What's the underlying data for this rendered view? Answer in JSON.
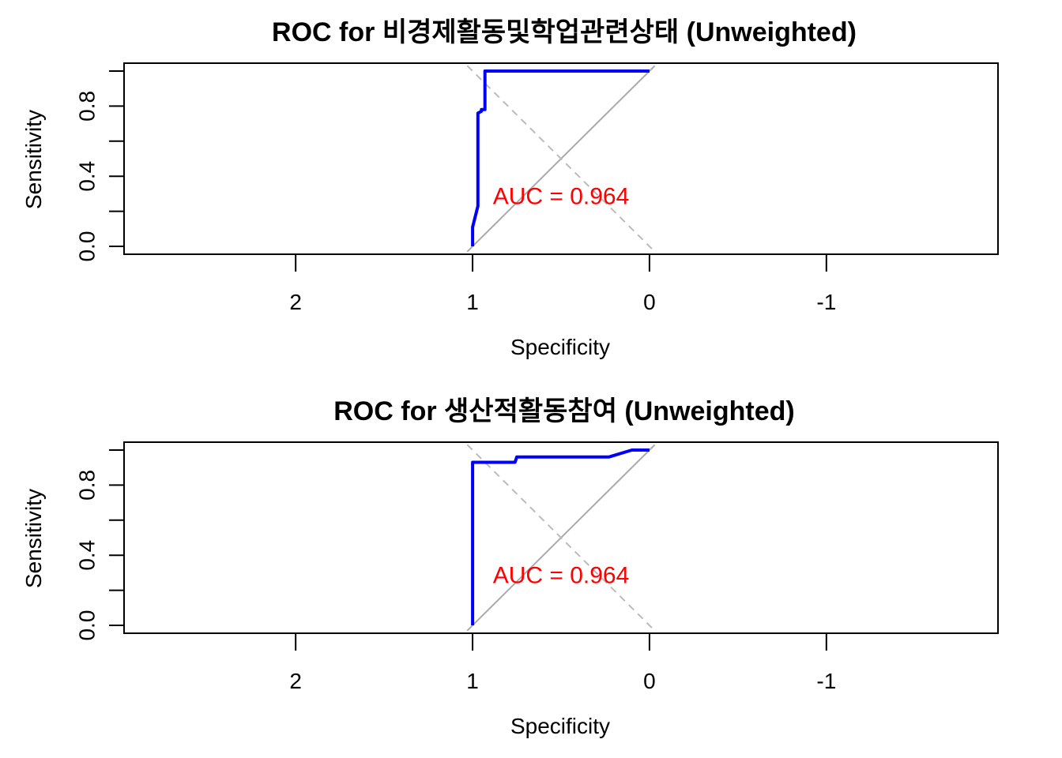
{
  "colors": {
    "curve": "#0000ff",
    "auc_text": "#ff0000",
    "diagonal": "#aaaaaa",
    "box": "#000000"
  },
  "chart_data": [
    {
      "type": "line",
      "title": "ROC for 비경제활동및학업관련상태 (Unweighted)",
      "xlabel": "Specificity",
      "ylabel": "Sensitivity",
      "xlim": [
        2.97,
        -1.97
      ],
      "ylim": [
        0,
        1
      ],
      "x_reversed": true,
      "x_ticks": [
        2,
        1,
        0,
        -1
      ],
      "x_tick_labels": [
        "2",
        "1",
        "0",
        "-1"
      ],
      "y_ticks": [
        0,
        0.2,
        0.4,
        0.6,
        0.8,
        1.0
      ],
      "y_tick_labels": [
        "0.0",
        "",
        "0.4",
        "",
        "0.8",
        ""
      ],
      "annotation": "AUC = 0.964",
      "annotation_pos": [
        0.5,
        0.29
      ],
      "grid": false,
      "series": [
        {
          "x": [
            1.0,
            1.0,
            0.97,
            0.97,
            0.95,
            0.95,
            0.93,
            0.93,
            0.0
          ],
          "y": [
            0.0,
            0.11,
            0.23,
            0.76,
            0.77,
            0.78,
            0.78,
            1.0,
            1.0
          ]
        }
      ]
    },
    {
      "type": "line",
      "title": "ROC for 생산적활동참여 (Unweighted)",
      "xlabel": "Specificity",
      "ylabel": "Sensitivity",
      "xlim": [
        2.97,
        -1.97
      ],
      "ylim": [
        0,
        1
      ],
      "x_reversed": true,
      "x_ticks": [
        2,
        1,
        0,
        -1
      ],
      "x_tick_labels": [
        "2",
        "1",
        "0",
        "-1"
      ],
      "y_ticks": [
        0,
        0.2,
        0.4,
        0.6,
        0.8,
        1.0
      ],
      "y_tick_labels": [
        "0.0",
        "",
        "0.4",
        "",
        "0.8",
        ""
      ],
      "annotation": "AUC = 0.964",
      "annotation_pos": [
        0.5,
        0.29
      ],
      "grid": false,
      "series": [
        {
          "x": [
            1.0,
            1.0,
            0.76,
            0.75,
            0.23,
            0.1,
            0.0
          ],
          "y": [
            0.0,
            0.93,
            0.93,
            0.96,
            0.96,
            1.0,
            1.0
          ]
        }
      ]
    }
  ]
}
